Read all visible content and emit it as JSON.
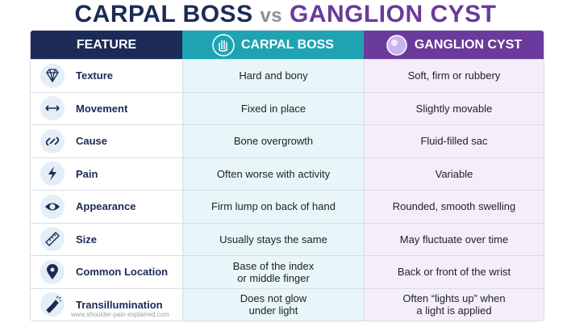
{
  "title": {
    "left": "CARPAL BOSS",
    "vs": "vs",
    "right": "GANGLION CYST"
  },
  "table": {
    "header": [
      "FEATURE",
      "CARPAL BOSS",
      "GANGLION CYST"
    ],
    "rows": [
      [
        "Texture",
        "Hard and bony",
        "Soft, firm or rubbery"
      ],
      [
        "Movement",
        "Fixed in place",
        "Slightly movable"
      ],
      [
        "Cause",
        "Bone overgrowth",
        "Fluid-filled sac"
      ],
      [
        "Pain",
        "Often worse with activity",
        "Variable"
      ],
      [
        "Appearance",
        "Firm lump on back of hand",
        "Rounded, smooth swelling"
      ],
      [
        "Size",
        "Usually stays the same",
        "May fluctuate over time"
      ],
      [
        "Common Location",
        "Base of the index\nor middle finger",
        "Back or front of the wrist"
      ],
      [
        "Transillumination",
        "Does not glow\nunder light",
        "Often “lights up” when\na light is applied"
      ]
    ]
  },
  "watermark": "www.shoulder-pain-explained.com"
}
